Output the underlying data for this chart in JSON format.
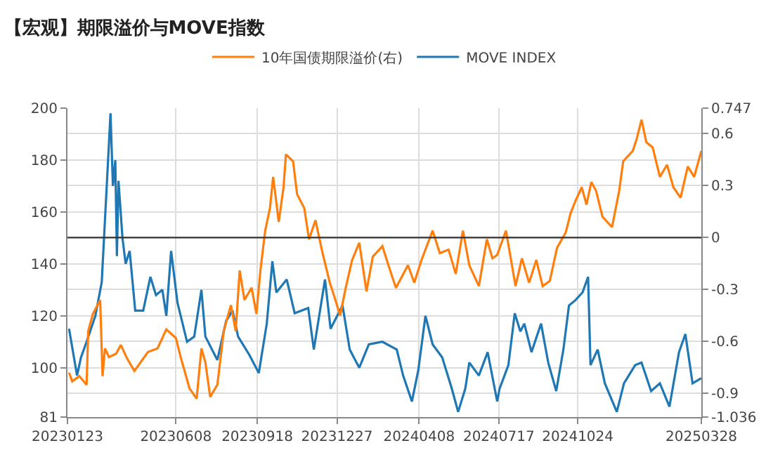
{
  "chart_data": {
    "type": "line",
    "title": "【宏观】期限溢价与MOVE指数",
    "series": [
      {
        "name": "10年国债期限溢价(右)",
        "color": "#ff7f0e",
        "axis": "y2",
        "x": [
          "2023-01-25",
          "2023-01-29",
          "2023-02-07",
          "2023-02-16",
          "2023-02-18",
          "2023-02-24",
          "2023-03-05",
          "2023-03-08",
          "2023-03-11",
          "2023-03-16",
          "2023-03-25",
          "2023-03-31",
          "2023-04-08",
          "2023-04-17",
          "2023-05-04",
          "2023-05-16",
          "2023-05-27",
          "2023-06-08",
          "2023-06-14",
          "2023-06-25",
          "2023-07-04",
          "2023-07-10",
          "2023-07-15",
          "2023-07-21",
          "2023-07-30",
          "2023-08-07",
          "2023-08-16",
          "2023-08-22",
          "2023-08-27",
          "2023-09-02",
          "2023-09-11",
          "2023-09-17",
          "2023-09-22",
          "2023-09-28",
          "2023-10-04",
          "2023-10-08",
          "2023-10-15",
          "2023-10-21",
          "2023-10-24",
          "2023-11-02",
          "2023-11-07",
          "2023-11-16",
          "2023-11-22",
          "2023-11-30",
          "2023-12-09",
          "2023-12-18",
          "2023-12-23",
          "2023-12-31",
          "2024-01-07",
          "2024-01-15",
          "2024-01-24",
          "2024-02-02",
          "2024-02-10",
          "2024-02-22",
          "2024-03-02",
          "2024-03-10",
          "2024-03-25",
          "2024-04-02",
          "2024-04-11",
          "2024-04-25",
          "2024-05-04",
          "2024-05-15",
          "2024-05-24",
          "2024-06-02",
          "2024-06-10",
          "2024-06-22",
          "2024-07-02",
          "2024-07-09",
          "2024-07-15",
          "2024-07-26",
          "2024-08-07",
          "2024-08-15",
          "2024-08-24",
          "2024-09-02",
          "2024-09-10",
          "2024-09-19",
          "2024-09-28",
          "2024-10-09",
          "2024-10-15",
          "2024-10-21",
          "2024-10-29",
          "2024-11-04",
          "2024-11-10",
          "2024-11-16",
          "2024-11-24",
          "2024-12-06",
          "2024-12-15",
          "2024-12-20",
          "2025-01-01",
          "2025-01-06",
          "2025-01-12",
          "2025-01-18",
          "2025-01-26",
          "2025-02-04",
          "2025-02-13",
          "2025-02-21",
          "2025-03-02",
          "2025-03-11",
          "2025-03-19",
          "2025-03-28"
        ],
        "values": [
          -0.78,
          -0.83,
          -0.8,
          -0.85,
          -0.54,
          -0.44,
          -0.36,
          -0.8,
          -0.64,
          -0.69,
          -0.67,
          -0.62,
          -0.7,
          -0.77,
          -0.66,
          -0.64,
          -0.53,
          -0.58,
          -0.69,
          -0.87,
          -0.93,
          -0.64,
          -0.72,
          -0.92,
          -0.85,
          -0.54,
          -0.39,
          -0.54,
          -0.19,
          -0.36,
          -0.29,
          -0.44,
          -0.19,
          0.04,
          0.17,
          0.35,
          0.09,
          0.29,
          0.48,
          0.44,
          0.25,
          0.17,
          -0.01,
          0.1,
          -0.09,
          -0.26,
          -0.33,
          -0.45,
          -0.29,
          -0.13,
          -0.03,
          -0.31,
          -0.11,
          -0.05,
          -0.18,
          -0.29,
          -0.16,
          -0.26,
          -0.13,
          0.04,
          -0.09,
          -0.07,
          -0.21,
          0.04,
          -0.16,
          -0.28,
          -0.01,
          -0.12,
          -0.1,
          0.04,
          -0.28,
          -0.12,
          -0.26,
          -0.13,
          -0.28,
          -0.25,
          -0.06,
          0.03,
          0.14,
          0.21,
          0.29,
          0.19,
          0.32,
          0.27,
          0.12,
          0.06,
          0.27,
          0.44,
          0.5,
          0.57,
          0.68,
          0.55,
          0.52,
          0.35,
          0.42,
          0.29,
          0.23,
          0.41,
          0.35,
          0.5
        ]
      },
      {
        "name": "MOVE INDEX",
        "color": "#1f77b4",
        "x": [
          "2023-01-25",
          "2023-02-04",
          "2023-02-09",
          "2023-02-16",
          "2023-02-27",
          "2023-03-07",
          "2023-03-18",
          "2023-03-21",
          "2023-03-24",
          "2023-03-26",
          "2023-03-28",
          "2023-04-02",
          "2023-04-06",
          "2023-04-11",
          "2023-04-18",
          "2023-04-28",
          "2023-05-07",
          "2023-05-14",
          "2023-05-22",
          "2023-05-27",
          "2023-06-02",
          "2023-06-10",
          "2023-06-22",
          "2023-07-01",
          "2023-07-10",
          "2023-07-15",
          "2023-07-30",
          "2023-08-10",
          "2023-08-18",
          "2023-08-25",
          "2023-09-08",
          "2023-09-20",
          "2023-09-30",
          "2023-10-07",
          "2023-10-12",
          "2023-10-25",
          "2023-11-04",
          "2023-11-21",
          "2023-11-28",
          "2023-12-12",
          "2023-12-19",
          "2024-01-03",
          "2024-01-12",
          "2024-01-24",
          "2024-02-05",
          "2024-02-22",
          "2024-03-11",
          "2024-03-19",
          "2024-03-30",
          "2024-04-07",
          "2024-04-16",
          "2024-04-25",
          "2024-05-07",
          "2024-05-19",
          "2024-05-27",
          "2024-06-05",
          "2024-06-10",
          "2024-06-22",
          "2024-07-03",
          "2024-07-15",
          "2024-07-18",
          "2024-07-29",
          "2024-08-06",
          "2024-08-13",
          "2024-08-18",
          "2024-08-27",
          "2024-09-08",
          "2024-09-17",
          "2024-09-27",
          "2024-10-06",
          "2024-10-13",
          "2024-10-21",
          "2024-10-30",
          "2024-11-06",
          "2024-11-09",
          "2024-11-18",
          "2024-11-27",
          "2024-12-12",
          "2024-12-21",
          "2025-01-04",
          "2025-01-12",
          "2025-01-24",
          "2025-02-04",
          "2025-02-16",
          "2025-02-28",
          "2025-03-08",
          "2025-03-17",
          "2025-03-28"
        ],
        "values": [
          115,
          97,
          104,
          110,
          120,
          133,
          198,
          170,
          180,
          143,
          172,
          150,
          140,
          145,
          122,
          122,
          135,
          128,
          130,
          120,
          145,
          125,
          110,
          112,
          130,
          112,
          103,
          118,
          122,
          112,
          105,
          98,
          117,
          141,
          129,
          134,
          121,
          123,
          107,
          134,
          115,
          124,
          107,
          100,
          109,
          110,
          107,
          97,
          87,
          99,
          120,
          109,
          104,
          92,
          83,
          92,
          102,
          97,
          106,
          87,
          92,
          101,
          121,
          114,
          117,
          106,
          117,
          102,
          91,
          107,
          124,
          126,
          129,
          135,
          101,
          107,
          94,
          83,
          94,
          101,
          102,
          91,
          94,
          85,
          106,
          113,
          94,
          96
        ]
      }
    ],
    "ylim": [
      81,
      200
    ],
    "yticks": [
      81,
      100,
      120,
      140,
      160,
      180,
      200
    ],
    "y2lim": [
      -1.036,
      0.747
    ],
    "y2ticks": [
      -1.036,
      -0.9,
      -0.6,
      -0.3,
      0,
      0.3,
      0.6,
      0.747
    ],
    "xlim": [
      "2023-01-23",
      "2025-03-28"
    ],
    "xticks": [
      {
        "value": "2023-01-23",
        "label": "20230123"
      },
      {
        "value": "2023-06-08",
        "label": "20230608"
      },
      {
        "value": "2023-09-18",
        "label": "20230918"
      },
      {
        "value": "2023-12-27",
        "label": "20231227"
      },
      {
        "value": "2024-04-08",
        "label": "20240408"
      },
      {
        "value": "2024-07-17",
        "label": "20240717"
      },
      {
        "value": "2024-10-24",
        "label": "20241024"
      },
      {
        "value": "2025-03-28",
        "label": "20250328"
      }
    ],
    "ref_lines": [
      {
        "axis": "y2",
        "value": 0,
        "color": "#333333",
        "line_style": "solid"
      }
    ],
    "grid": true,
    "legend": "top",
    "line_style": "solid"
  }
}
